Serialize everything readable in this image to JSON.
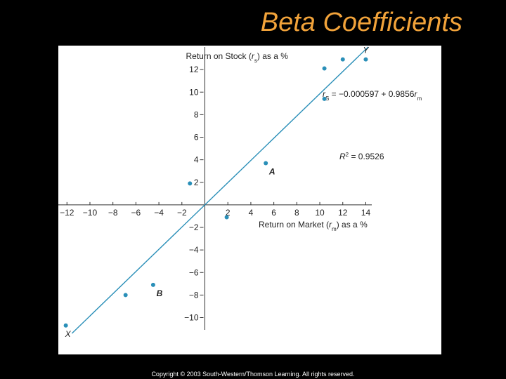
{
  "title": "Beta Coefficients",
  "footer": "Copyright © 2003 South-Western/Thomson Learning. All rights reserved.",
  "chart_data": {
    "type": "scatter",
    "color": "#2a8fb8",
    "x_label": [
      "Return on Market (",
      "r",
      "m",
      ") as a %"
    ],
    "y_label": [
      "Return on Stock (",
      "r",
      "s",
      ") as a %"
    ],
    "x": [
      -12.1,
      -6.9,
      -4.5,
      -1.3,
      1.9,
      5.3,
      10.4,
      10.4,
      12,
      14
    ],
    "y": [
      -10.7,
      -8,
      -7.1,
      1.9,
      -1.1,
      3.7,
      9.4,
      12.1,
      12.9,
      12.9
    ],
    "point_labels": [
      "X",
      null,
      "B",
      null,
      null,
      "A",
      null,
      null,
      null,
      "Y"
    ],
    "fit": {
      "intercept": -0.000597,
      "slope": 0.9856
    },
    "equation": [
      "r",
      "S",
      " = −0.000597 + 0.9856",
      "r",
      "m"
    ],
    "r_squared": [
      "R",
      "2",
      " = 0.9526"
    ],
    "xlim": [
      -12.75,
      14.4
    ],
    "ylim": [
      -11.4,
      14
    ],
    "xticks": [
      {
        "value": -12,
        "label": "−12"
      },
      {
        "value": -10,
        "label": "−10"
      },
      {
        "value": -8,
        "label": "−8"
      },
      {
        "value": -6,
        "label": "−6"
      },
      {
        "value": -4,
        "label": "−4"
      },
      {
        "value": -2,
        "label": "−2"
      },
      2,
      4,
      6,
      8,
      10,
      12,
      14
    ],
    "yticks": [
      {
        "value": -10,
        "label": "−10"
      },
      {
        "value": -8,
        "label": "−8"
      },
      {
        "value": -6,
        "label": "−6"
      },
      {
        "value": -4,
        "label": "−4"
      },
      {
        "value": -2,
        "label": "−2"
      },
      2,
      4,
      6,
      8,
      10,
      12
    ]
  }
}
